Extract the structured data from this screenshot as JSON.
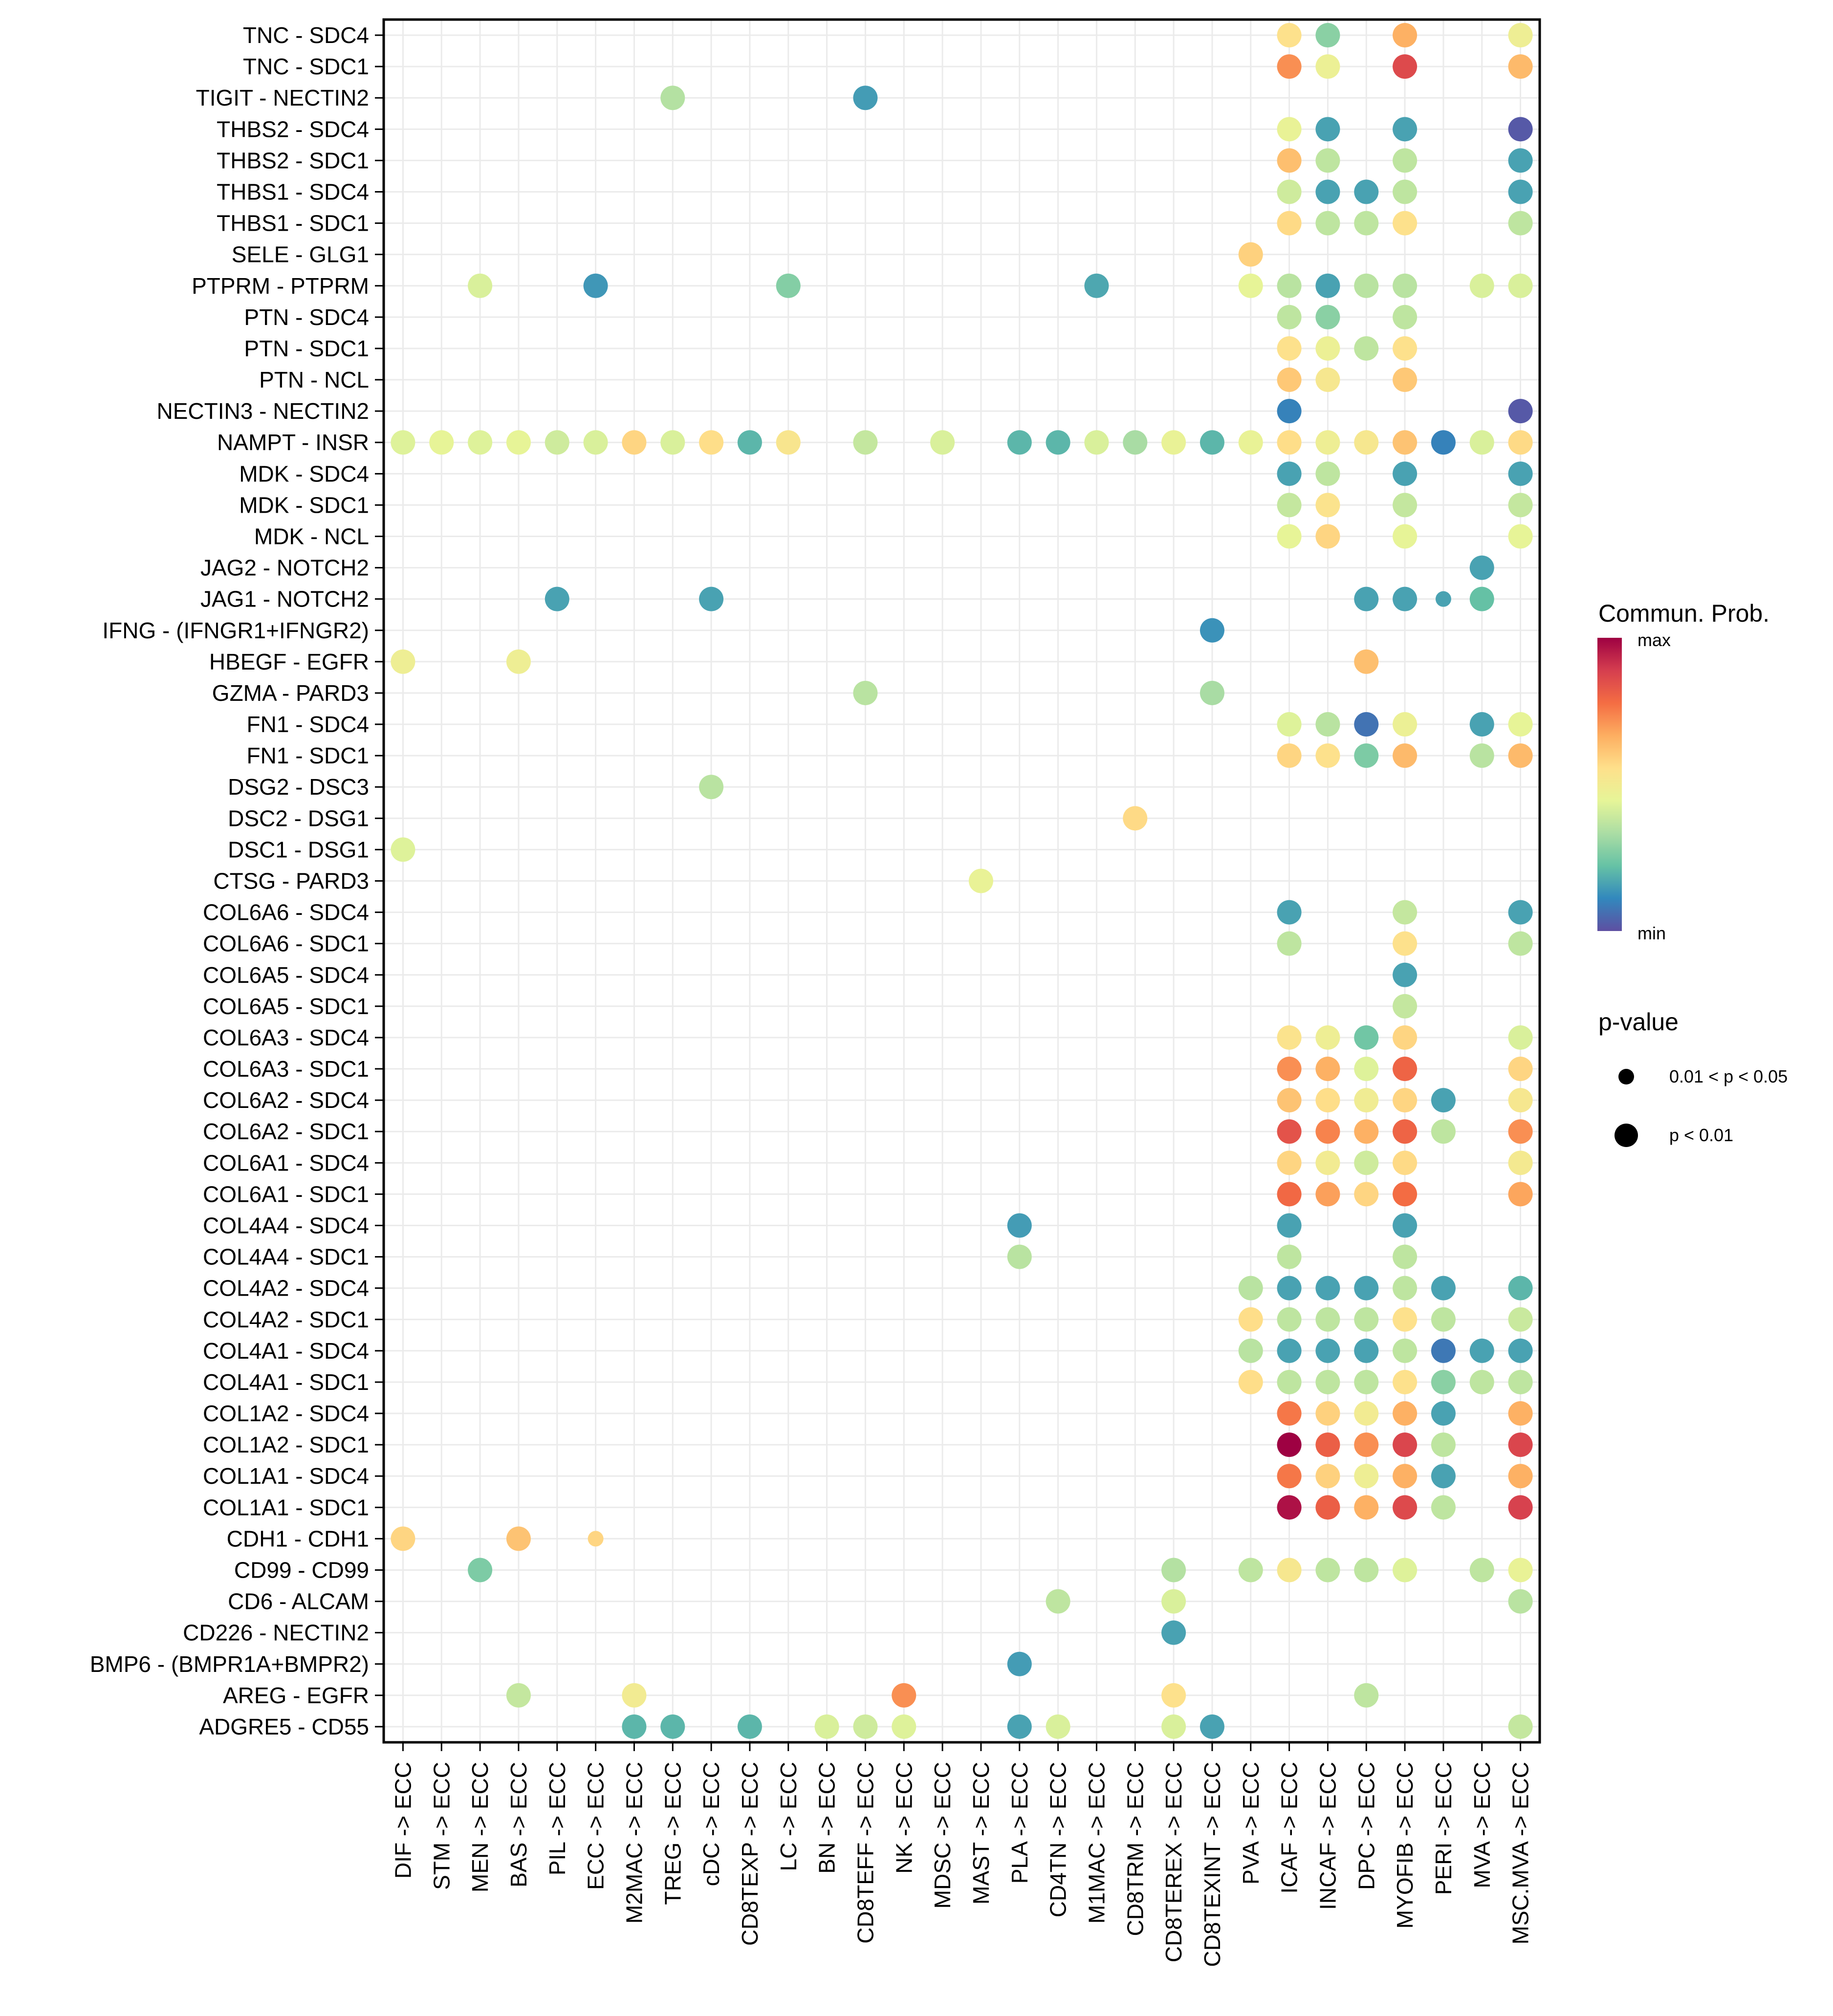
{
  "chart_data": {
    "type": "scatter",
    "subtype": "dot-plot (cell-cell communication bubble chart)",
    "title": "",
    "xlabel": "",
    "ylabel": "",
    "grid": true,
    "x": [
      "DIF -> ECC",
      "STM -> ECC",
      "MEN -> ECC",
      "BAS -> ECC",
      "PIL -> ECC",
      "ECC -> ECC",
      "M2MAC -> ECC",
      "TREG -> ECC",
      "cDC -> ECC",
      "CD8TEXP -> ECC",
      "LC -> ECC",
      "BN -> ECC",
      "CD8TEFF -> ECC",
      "NK -> ECC",
      "MDSC -> ECC",
      "MAST -> ECC",
      "PLA -> ECC",
      "CD4TN -> ECC",
      "M1MAC -> ECC",
      "CD8TRM -> ECC",
      "CD8TEREX -> ECC",
      "CD8TEXINT -> ECC",
      "PVA -> ECC",
      "ICAF -> ECC",
      "INCAF -> ECC",
      "DPC -> ECC",
      "MYOFIB -> ECC",
      "PERI -> ECC",
      "MVA -> ECC",
      "MSC.MVA -> ECC"
    ],
    "y": [
      "TNC - SDC4",
      "TNC - SDC1",
      "TIGIT - NECTIN2",
      "THBS2 - SDC4",
      "THBS2 - SDC1",
      "THBS1 - SDC4",
      "THBS1 - SDC1",
      "SELE - GLG1",
      "PTPRM - PTPRM",
      "PTN - SDC4",
      "PTN - SDC1",
      "PTN - NCL",
      "NECTIN3 - NECTIN2",
      "NAMPT - INSR",
      "MDK - SDC4",
      "MDK - SDC1",
      "MDK - NCL",
      "JAG2 - NOTCH2",
      "JAG1 - NOTCH2",
      "IFNG - (IFNGR1+IFNGR2)",
      "HBEGF - EGFR",
      "GZMA - PARD3",
      "FN1 - SDC4",
      "FN1 - SDC1",
      "DSG2 - DSC3",
      "DSC2 - DSG1",
      "DSC1 - DSG1",
      "CTSG - PARD3",
      "COL6A6 - SDC4",
      "COL6A6 - SDC1",
      "COL6A5 - SDC4",
      "COL6A5 - SDC1",
      "COL6A3 - SDC4",
      "COL6A3 - SDC1",
      "COL6A2 - SDC4",
      "COL6A2 - SDC1",
      "COL6A1 - SDC4",
      "COL6A1 - SDC1",
      "COL4A4 - SDC4",
      "COL4A4 - SDC1",
      "COL4A2 - SDC4",
      "COL4A2 - SDC1",
      "COL4A1 - SDC4",
      "COL4A1 - SDC1",
      "COL1A2 - SDC4",
      "COL1A2 - SDC1",
      "COL1A1 - SDC4",
      "COL1A1 - SDC1",
      "CDH1 - CDH1",
      "CD99 - CD99",
      "CD6 - ALCAM",
      "CD226 - NECTIN2",
      "BMP6 - (BMPR1A+BMPR2)",
      "AREG - EGFR",
      "ADGRE5 - CD55"
    ],
    "points_note": "each point: [row_label_index, column_index, commun_prob_scaled_0to1, p_category] where p_category 1 = p < 0.01 (large), 0 = 0.01 < p < 0.05 (small)",
    "points": [
      [
        0,
        23,
        0.55,
        1
      ],
      [
        0,
        24,
        0.28,
        1
      ],
      [
        0,
        26,
        0.66,
        1
      ],
      [
        0,
        29,
        0.48,
        1
      ],
      [
        1,
        23,
        0.72,
        1
      ],
      [
        1,
        24,
        0.47,
        1
      ],
      [
        1,
        26,
        0.86,
        1
      ],
      [
        1,
        29,
        0.64,
        1
      ],
      [
        2,
        7,
        0.35,
        1
      ],
      [
        2,
        12,
        0.15,
        1
      ],
      [
        3,
        23,
        0.46,
        1
      ],
      [
        3,
        24,
        0.16,
        1
      ],
      [
        3,
        26,
        0.16,
        1
      ],
      [
        3,
        29,
        0.02,
        1
      ],
      [
        4,
        23,
        0.63,
        1
      ],
      [
        4,
        24,
        0.37,
        1
      ],
      [
        4,
        26,
        0.37,
        1
      ],
      [
        4,
        29,
        0.16,
        1
      ],
      [
        5,
        23,
        0.4,
        1
      ],
      [
        5,
        24,
        0.16,
        1
      ],
      [
        5,
        25,
        0.16,
        1
      ],
      [
        5,
        26,
        0.37,
        1
      ],
      [
        5,
        29,
        0.16,
        1
      ],
      [
        6,
        23,
        0.57,
        1
      ],
      [
        6,
        24,
        0.37,
        1
      ],
      [
        6,
        25,
        0.37,
        1
      ],
      [
        6,
        26,
        0.55,
        1
      ],
      [
        6,
        29,
        0.37,
        1
      ],
      [
        7,
        22,
        0.59,
        1
      ],
      [
        8,
        2,
        0.42,
        1
      ],
      [
        8,
        5,
        0.14,
        1
      ],
      [
        8,
        10,
        0.27,
        1
      ],
      [
        8,
        18,
        0.17,
        1
      ],
      [
        8,
        22,
        0.45,
        1
      ],
      [
        8,
        23,
        0.36,
        1
      ],
      [
        8,
        24,
        0.16,
        1
      ],
      [
        8,
        25,
        0.36,
        1
      ],
      [
        8,
        26,
        0.36,
        1
      ],
      [
        8,
        28,
        0.42,
        1
      ],
      [
        8,
        29,
        0.42,
        1
      ],
      [
        9,
        23,
        0.37,
        1
      ],
      [
        9,
        24,
        0.28,
        1
      ],
      [
        9,
        26,
        0.37,
        1
      ],
      [
        10,
        23,
        0.55,
        1
      ],
      [
        10,
        24,
        0.47,
        1
      ],
      [
        10,
        25,
        0.37,
        1
      ],
      [
        10,
        26,
        0.55,
        1
      ],
      [
        11,
        23,
        0.61,
        1
      ],
      [
        11,
        24,
        0.52,
        1
      ],
      [
        11,
        26,
        0.61,
        1
      ],
      [
        12,
        23,
        0.1,
        1
      ],
      [
        12,
        29,
        0.02,
        1
      ],
      [
        13,
        0,
        0.43,
        1
      ],
      [
        13,
        1,
        0.45,
        1
      ],
      [
        13,
        2,
        0.43,
        1
      ],
      [
        13,
        3,
        0.45,
        1
      ],
      [
        13,
        4,
        0.4,
        1
      ],
      [
        13,
        5,
        0.42,
        1
      ],
      [
        13,
        6,
        0.58,
        1
      ],
      [
        13,
        7,
        0.42,
        1
      ],
      [
        13,
        8,
        0.56,
        1
      ],
      [
        13,
        9,
        0.2,
        1
      ],
      [
        13,
        10,
        0.53,
        1
      ],
      [
        13,
        12,
        0.38,
        1
      ],
      [
        13,
        14,
        0.42,
        1
      ],
      [
        13,
        16,
        0.2,
        1
      ],
      [
        13,
        17,
        0.2,
        1
      ],
      [
        13,
        18,
        0.42,
        1
      ],
      [
        13,
        19,
        0.33,
        1
      ],
      [
        13,
        20,
        0.46,
        1
      ],
      [
        13,
        21,
        0.2,
        1
      ],
      [
        13,
        22,
        0.46,
        1
      ],
      [
        13,
        23,
        0.56,
        1
      ],
      [
        13,
        24,
        0.48,
        1
      ],
      [
        13,
        25,
        0.52,
        1
      ],
      [
        13,
        26,
        0.62,
        1
      ],
      [
        13,
        27,
        0.1,
        1
      ],
      [
        13,
        28,
        0.42,
        1
      ],
      [
        13,
        29,
        0.57,
        1
      ],
      [
        14,
        23,
        0.16,
        1
      ],
      [
        14,
        24,
        0.37,
        1
      ],
      [
        14,
        26,
        0.16,
        1
      ],
      [
        14,
        29,
        0.16,
        1
      ],
      [
        15,
        23,
        0.38,
        1
      ],
      [
        15,
        24,
        0.54,
        1
      ],
      [
        15,
        26,
        0.38,
        1
      ],
      [
        15,
        29,
        0.38,
        1
      ],
      [
        16,
        23,
        0.45,
        1
      ],
      [
        16,
        24,
        0.58,
        1
      ],
      [
        16,
        26,
        0.45,
        1
      ],
      [
        16,
        29,
        0.45,
        1
      ],
      [
        17,
        28,
        0.16,
        1
      ],
      [
        18,
        4,
        0.16,
        1
      ],
      [
        18,
        8,
        0.16,
        1
      ],
      [
        18,
        25,
        0.16,
        1
      ],
      [
        18,
        26,
        0.16,
        1
      ],
      [
        18,
        27,
        0.16,
        0
      ],
      [
        18,
        28,
        0.22,
        1
      ],
      [
        19,
        21,
        0.13,
        1
      ],
      [
        20,
        0,
        0.48,
        1
      ],
      [
        20,
        3,
        0.48,
        1
      ],
      [
        20,
        25,
        0.63,
        1
      ],
      [
        21,
        12,
        0.36,
        1
      ],
      [
        21,
        21,
        0.33,
        1
      ],
      [
        22,
        23,
        0.43,
        1
      ],
      [
        22,
        24,
        0.36,
        1
      ],
      [
        22,
        25,
        0.07,
        1
      ],
      [
        22,
        26,
        0.47,
        1
      ],
      [
        22,
        28,
        0.16,
        1
      ],
      [
        22,
        29,
        0.45,
        1
      ],
      [
        23,
        23,
        0.58,
        1
      ],
      [
        23,
        24,
        0.55,
        1
      ],
      [
        23,
        25,
        0.26,
        1
      ],
      [
        23,
        26,
        0.64,
        1
      ],
      [
        23,
        28,
        0.36,
        1
      ],
      [
        23,
        29,
        0.64,
        1
      ],
      [
        24,
        8,
        0.36,
        1
      ],
      [
        25,
        19,
        0.57,
        1
      ],
      [
        26,
        0,
        0.43,
        1
      ],
      [
        27,
        15,
        0.46,
        1
      ],
      [
        28,
        23,
        0.16,
        1
      ],
      [
        28,
        26,
        0.38,
        1
      ],
      [
        28,
        29,
        0.16,
        1
      ],
      [
        29,
        23,
        0.37,
        1
      ],
      [
        29,
        26,
        0.55,
        1
      ],
      [
        29,
        29,
        0.37,
        1
      ],
      [
        30,
        26,
        0.16,
        1
      ],
      [
        31,
        26,
        0.38,
        1
      ],
      [
        32,
        23,
        0.54,
        1
      ],
      [
        32,
        24,
        0.48,
        1
      ],
      [
        32,
        25,
        0.24,
        1
      ],
      [
        32,
        26,
        0.58,
        1
      ],
      [
        32,
        29,
        0.42,
        1
      ],
      [
        33,
        23,
        0.72,
        1
      ],
      [
        33,
        24,
        0.66,
        1
      ],
      [
        33,
        25,
        0.43,
        1
      ],
      [
        33,
        26,
        0.8,
        1
      ],
      [
        33,
        29,
        0.58,
        1
      ],
      [
        34,
        23,
        0.62,
        1
      ],
      [
        34,
        24,
        0.56,
        1
      ],
      [
        34,
        25,
        0.49,
        1
      ],
      [
        34,
        26,
        0.58,
        1
      ],
      [
        34,
        27,
        0.16,
        1
      ],
      [
        34,
        29,
        0.52,
        1
      ],
      [
        35,
        23,
        0.84,
        1
      ],
      [
        35,
        24,
        0.74,
        1
      ],
      [
        35,
        25,
        0.66,
        1
      ],
      [
        35,
        26,
        0.8,
        1
      ],
      [
        35,
        27,
        0.37,
        1
      ],
      [
        35,
        29,
        0.72,
        1
      ],
      [
        36,
        23,
        0.58,
        1
      ],
      [
        36,
        24,
        0.5,
        1
      ],
      [
        36,
        25,
        0.4,
        1
      ],
      [
        36,
        26,
        0.57,
        1
      ],
      [
        36,
        29,
        0.51,
        1
      ],
      [
        37,
        23,
        0.79,
        1
      ],
      [
        37,
        24,
        0.69,
        1
      ],
      [
        37,
        25,
        0.58,
        1
      ],
      [
        37,
        26,
        0.78,
        1
      ],
      [
        37,
        29,
        0.68,
        1
      ],
      [
        38,
        16,
        0.15,
        1
      ],
      [
        38,
        23,
        0.16,
        1
      ],
      [
        38,
        26,
        0.16,
        1
      ],
      [
        39,
        16,
        0.36,
        1
      ],
      [
        39,
        23,
        0.37,
        1
      ],
      [
        39,
        26,
        0.37,
        1
      ],
      [
        40,
        22,
        0.36,
        1
      ],
      [
        40,
        23,
        0.16,
        1
      ],
      [
        40,
        24,
        0.16,
        1
      ],
      [
        40,
        25,
        0.16,
        1
      ],
      [
        40,
        26,
        0.37,
        1
      ],
      [
        40,
        27,
        0.16,
        1
      ],
      [
        40,
        29,
        0.2,
        1
      ],
      [
        41,
        22,
        0.56,
        1
      ],
      [
        41,
        23,
        0.37,
        1
      ],
      [
        41,
        24,
        0.37,
        1
      ],
      [
        41,
        25,
        0.37,
        1
      ],
      [
        41,
        26,
        0.55,
        1
      ],
      [
        41,
        27,
        0.37,
        1
      ],
      [
        41,
        29,
        0.39,
        1
      ],
      [
        42,
        22,
        0.36,
        1
      ],
      [
        42,
        23,
        0.16,
        1
      ],
      [
        42,
        24,
        0.16,
        1
      ],
      [
        42,
        25,
        0.16,
        1
      ],
      [
        42,
        26,
        0.37,
        1
      ],
      [
        42,
        27,
        0.08,
        1
      ],
      [
        42,
        28,
        0.16,
        1
      ],
      [
        42,
        29,
        0.16,
        1
      ],
      [
        43,
        22,
        0.56,
        1
      ],
      [
        43,
        23,
        0.37,
        1
      ],
      [
        43,
        24,
        0.37,
        1
      ],
      [
        43,
        25,
        0.37,
        1
      ],
      [
        43,
        26,
        0.55,
        1
      ],
      [
        43,
        27,
        0.28,
        1
      ],
      [
        43,
        28,
        0.37,
        1
      ],
      [
        43,
        29,
        0.37,
        1
      ],
      [
        44,
        23,
        0.76,
        1
      ],
      [
        44,
        24,
        0.59,
        1
      ],
      [
        44,
        25,
        0.5,
        1
      ],
      [
        44,
        26,
        0.66,
        1
      ],
      [
        44,
        27,
        0.16,
        1
      ],
      [
        44,
        29,
        0.66,
        1
      ],
      [
        45,
        23,
        1.0,
        1
      ],
      [
        45,
        24,
        0.81,
        1
      ],
      [
        45,
        25,
        0.72,
        1
      ],
      [
        45,
        26,
        0.87,
        1
      ],
      [
        45,
        27,
        0.37,
        1
      ],
      [
        45,
        29,
        0.87,
        1
      ],
      [
        46,
        23,
        0.76,
        1
      ],
      [
        46,
        24,
        0.59,
        1
      ],
      [
        46,
        25,
        0.48,
        1
      ],
      [
        46,
        26,
        0.66,
        1
      ],
      [
        46,
        27,
        0.16,
        1
      ],
      [
        46,
        29,
        0.66,
        1
      ],
      [
        47,
        23,
        0.97,
        1
      ],
      [
        47,
        24,
        0.81,
        1
      ],
      [
        47,
        25,
        0.66,
        1
      ],
      [
        47,
        26,
        0.86,
        1
      ],
      [
        47,
        27,
        0.37,
        1
      ],
      [
        47,
        29,
        0.88,
        1
      ],
      [
        48,
        0,
        0.58,
        1
      ],
      [
        48,
        3,
        0.62,
        1
      ],
      [
        48,
        5,
        0.58,
        0
      ],
      [
        49,
        2,
        0.26,
        1
      ],
      [
        49,
        20,
        0.35,
        1
      ],
      [
        49,
        22,
        0.37,
        1
      ],
      [
        49,
        23,
        0.52,
        1
      ],
      [
        49,
        24,
        0.37,
        1
      ],
      [
        49,
        25,
        0.37,
        1
      ],
      [
        49,
        26,
        0.43,
        1
      ],
      [
        49,
        28,
        0.37,
        1
      ],
      [
        49,
        29,
        0.46,
        1
      ],
      [
        50,
        17,
        0.37,
        1
      ],
      [
        50,
        20,
        0.42,
        1
      ],
      [
        50,
        29,
        0.36,
        1
      ],
      [
        51,
        20,
        0.16,
        1
      ],
      [
        52,
        16,
        0.15,
        1
      ],
      [
        53,
        3,
        0.38,
        1
      ],
      [
        53,
        6,
        0.5,
        1
      ],
      [
        53,
        13,
        0.72,
        1
      ],
      [
        53,
        20,
        0.55,
        1
      ],
      [
        53,
        25,
        0.37,
        1
      ],
      [
        54,
        6,
        0.2,
        1
      ],
      [
        54,
        7,
        0.2,
        1
      ],
      [
        54,
        9,
        0.2,
        1
      ],
      [
        54,
        11,
        0.42,
        1
      ],
      [
        54,
        12,
        0.4,
        1
      ],
      [
        54,
        13,
        0.43,
        1
      ],
      [
        54,
        16,
        0.16,
        1
      ],
      [
        54,
        17,
        0.42,
        1
      ],
      [
        54,
        20,
        0.42,
        1
      ],
      [
        54,
        21,
        0.16,
        1
      ],
      [
        54,
        29,
        0.38,
        1
      ]
    ],
    "color_scale": {
      "title": "Commun. Prob.",
      "max_label": "max",
      "min_label": "min",
      "palette": [
        "#5E4FA2",
        "#3288BD",
        "#66C2A5",
        "#ABDDA4",
        "#E6F598",
        "#FEE08B",
        "#FDAE61",
        "#F46D43",
        "#D53E4F",
        "#9E0142"
      ]
    },
    "size_legend": {
      "title": "p-value",
      "levels": [
        "0.01 < p < 0.05",
        "p < 0.01"
      ]
    },
    "legend_placement": "right"
  }
}
